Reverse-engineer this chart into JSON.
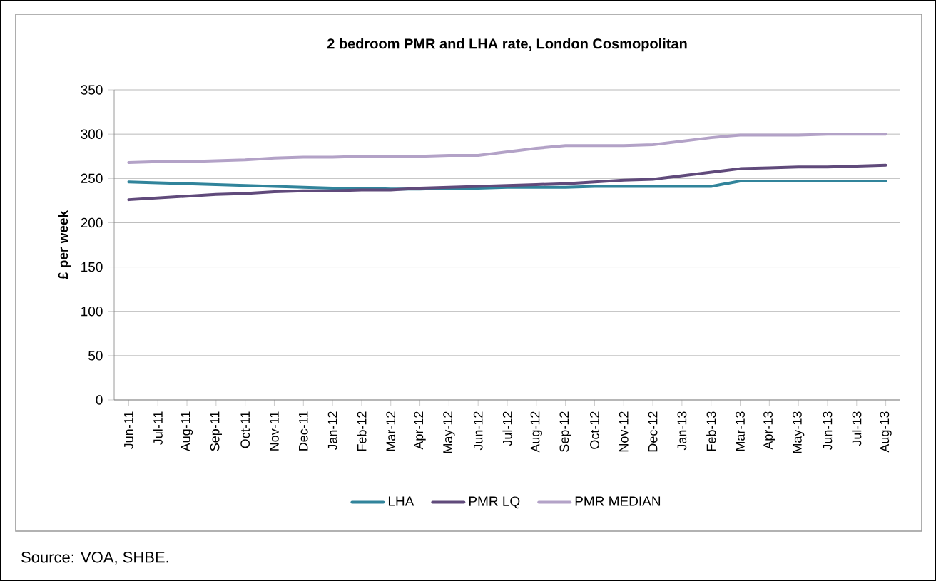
{
  "chart_data": {
    "type": "line",
    "title": "2 bedroom PMR and LHA rate, London Cosmopolitan",
    "ylabel": "£ per week",
    "categories": [
      "Jun-11",
      "Jul-11",
      "Aug-11",
      "Sep-11",
      "Oct-11",
      "Nov-11",
      "Dec-11",
      "Jan-12",
      "Feb-12",
      "Mar-12",
      "Apr-12",
      "May-12",
      "Jun-12",
      "Jul-12",
      "Aug-12",
      "Sep-12",
      "Oct-12",
      "Nov-12",
      "Dec-12",
      "Jan-13",
      "Feb-13",
      "Mar-13",
      "Apr-13",
      "May-13",
      "Jun-13",
      "Jul-13",
      "Aug-13"
    ],
    "series": [
      {
        "name": "LHA",
        "color": "#31849b",
        "values": [
          246,
          245,
          244,
          243,
          242,
          241,
          240,
          239,
          239,
          238,
          238,
          239,
          239,
          240,
          240,
          240,
          241,
          241,
          241,
          241,
          241,
          247,
          247,
          247,
          247,
          247,
          247
        ]
      },
      {
        "name": "PMR LQ",
        "color": "#604a7b",
        "values": [
          226,
          228,
          230,
          232,
          233,
          235,
          236,
          236,
          237,
          237,
          239,
          240,
          241,
          242,
          243,
          244,
          246,
          248,
          249,
          253,
          257,
          261,
          262,
          263,
          263,
          264,
          265
        ]
      },
      {
        "name": "PMR MEDIAN",
        "color": "#b3a2c7",
        "values": [
          268,
          269,
          269,
          270,
          271,
          273,
          274,
          274,
          275,
          275,
          275,
          276,
          276,
          280,
          284,
          287,
          287,
          287,
          288,
          292,
          296,
          299,
          299,
          299,
          300,
          300,
          300
        ]
      }
    ],
    "ylim": [
      0,
      350
    ],
    "yticks": [
      0,
      50,
      100,
      150,
      200,
      250,
      300,
      350
    ],
    "grid": "y",
    "legend": "bottom",
    "annotations": [
      "Source: VOA, SHBE."
    ]
  }
}
